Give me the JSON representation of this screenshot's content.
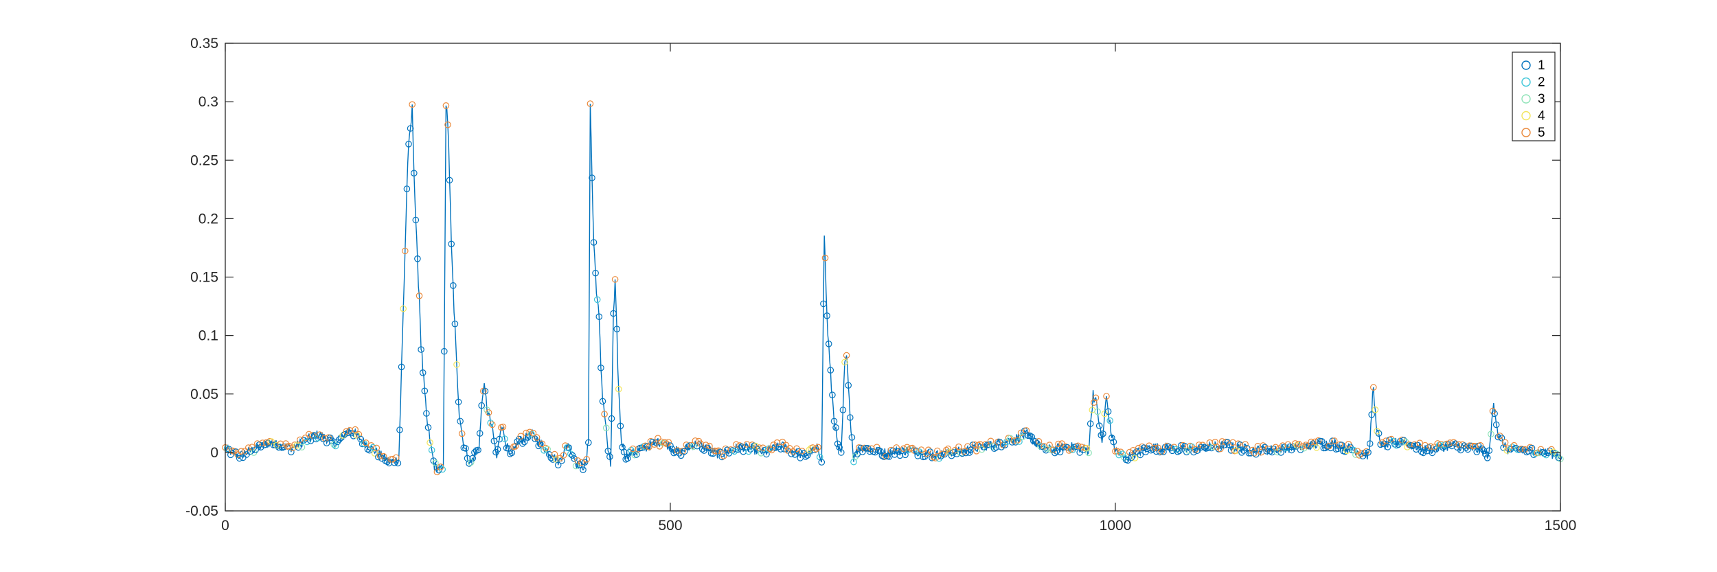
{
  "chart_data": {
    "type": "scatter",
    "title": "",
    "xlabel": "",
    "ylabel": "",
    "xlim": [
      0,
      1500
    ],
    "ylim": [
      -0.05,
      0.35
    ],
    "x_ticks": [
      0,
      500,
      1000,
      1500
    ],
    "y_ticks": [
      -0.05,
      0,
      0.05,
      0.1,
      0.15,
      0.2,
      0.25,
      0.3,
      0.35
    ],
    "x_tick_labels": [
      "0",
      "500",
      "1000",
      "1500"
    ],
    "y_tick_labels": [
      "-0.05",
      "0",
      "0.05",
      "0.1",
      "0.15",
      "0.2",
      "0.25",
      "0.3",
      "0.35"
    ],
    "grid": false,
    "legend_position": "top-right",
    "line_color": "#0072BD",
    "series": [
      {
        "name": "1",
        "color": "#0072BD"
      },
      {
        "name": "2",
        "color": "#3EC6D9"
      },
      {
        "name": "3",
        "color": "#8FE3B8"
      },
      {
        "name": "4",
        "color": "#F2E55C"
      },
      {
        "name": "5",
        "color": "#EA8A3C"
      }
    ],
    "peaks": [
      [
        0,
        0.003
      ],
      [
        15,
        -0.003
      ],
      [
        30,
        0.002
      ],
      [
        50,
        0.008
      ],
      [
        75,
        0.004
      ],
      [
        105,
        0.016
      ],
      [
        125,
        0.007
      ],
      [
        140,
        0.02
      ],
      [
        160,
        0.006
      ],
      [
        185,
        -0.008
      ],
      [
        195,
        -0.006
      ],
      [
        205,
        0.25
      ],
      [
        210,
        0.293
      ],
      [
        213,
        0.22
      ],
      [
        216,
        0.16
      ],
      [
        218,
        0.135
      ],
      [
        220,
        0.092
      ],
      [
        223,
        0.06
      ],
      [
        226,
        0.03
      ],
      [
        230,
        0.01
      ],
      [
        235,
        -0.012
      ],
      [
        245,
        -0.015
      ],
      [
        248,
        0.3
      ],
      [
        251,
        0.265
      ],
      [
        254,
        0.175
      ],
      [
        257,
        0.123
      ],
      [
        260,
        0.072
      ],
      [
        263,
        0.035
      ],
      [
        267,
        0.01
      ],
      [
        275,
        -0.01
      ],
      [
        285,
        0.005
      ],
      [
        290,
        0.058
      ],
      [
        295,
        0.035
      ],
      [
        300,
        0.02
      ],
      [
        305,
        -0.005
      ],
      [
        310,
        0.025
      ],
      [
        320,
        -0.005
      ],
      [
        330,
        0.01
      ],
      [
        345,
        0.015
      ],
      [
        360,
        0.003
      ],
      [
        375,
        -0.008
      ],
      [
        385,
        0.008
      ],
      [
        395,
        -0.01
      ],
      [
        405,
        -0.012
      ],
      [
        408,
        0.01
      ],
      [
        410,
        0.3
      ],
      [
        412,
        0.235
      ],
      [
        414,
        0.18
      ],
      [
        416,
        0.153
      ],
      [
        418,
        0.13
      ],
      [
        420,
        0.113
      ],
      [
        422,
        0.074
      ],
      [
        424,
        0.048
      ],
      [
        426,
        0.035
      ],
      [
        430,
        0.002
      ],
      [
        433,
        -0.012
      ],
      [
        436,
        0.115
      ],
      [
        438,
        0.143
      ],
      [
        440,
        0.1
      ],
      [
        442,
        0.053
      ],
      [
        445,
        0.01
      ],
      [
        450,
        -0.003
      ],
      [
        470,
        0.003
      ],
      [
        490,
        0.01
      ],
      [
        510,
        0
      ],
      [
        530,
        0.008
      ],
      [
        555,
        -0.002
      ],
      [
        580,
        0.005
      ],
      [
        605,
        0
      ],
      [
        625,
        0.006
      ],
      [
        650,
        -0.003
      ],
      [
        665,
        0.003
      ],
      [
        670,
        -0.005
      ],
      [
        673,
        0.188
      ],
      [
        676,
        0.115
      ],
      [
        680,
        0.065
      ],
      [
        684,
        0.03
      ],
      [
        688,
        0.005
      ],
      [
        692,
        -0.003
      ],
      [
        696,
        0.075
      ],
      [
        699,
        0.08
      ],
      [
        702,
        0.03
      ],
      [
        706,
        -0.005
      ],
      [
        712,
        0.005
      ],
      [
        740,
        0
      ],
      [
        770,
        0.002
      ],
      [
        800,
        -0.002
      ],
      [
        840,
        0.003
      ],
      [
        870,
        0.008
      ],
      [
        900,
        0.015
      ],
      [
        920,
        0.002
      ],
      [
        950,
        0.005
      ],
      [
        970,
        0.002
      ],
      [
        975,
        0.052
      ],
      [
        980,
        0.035
      ],
      [
        985,
        0.008
      ],
      [
        990,
        0.047
      ],
      [
        995,
        0.018
      ],
      [
        1000,
        0.002
      ],
      [
        1010,
        -0.005
      ],
      [
        1040,
        0.005
      ],
      [
        1080,
        0.002
      ],
      [
        1120,
        0.006
      ],
      [
        1160,
        0.002
      ],
      [
        1200,
        0.004
      ],
      [
        1240,
        0.008
      ],
      [
        1270,
        0.002
      ],
      [
        1285,
        -0.003
      ],
      [
        1290,
        0.06
      ],
      [
        1293,
        0.02
      ],
      [
        1300,
        0.005
      ],
      [
        1320,
        0.01
      ],
      [
        1350,
        0.002
      ],
      [
        1380,
        0.006
      ],
      [
        1410,
        0.002
      ],
      [
        1420,
        -0.002
      ],
      [
        1425,
        0.045
      ],
      [
        1430,
        0.015
      ],
      [
        1440,
        0.002
      ],
      [
        1470,
        0.002
      ],
      [
        1500,
        -0.003
      ]
    ]
  }
}
